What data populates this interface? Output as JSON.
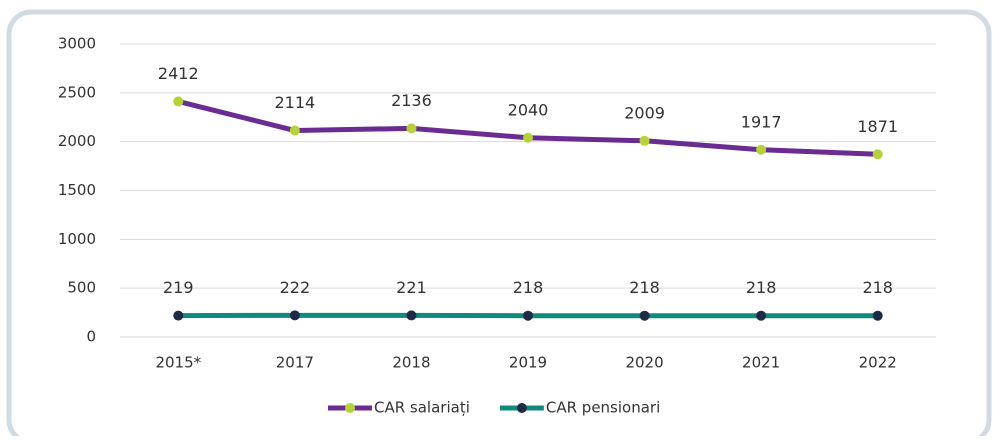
{
  "chart_data": {
    "type": "line",
    "categories": [
      "2015*",
      "2017",
      "2018",
      "2019",
      "2020",
      "2021",
      "2022"
    ],
    "series": [
      {
        "name": "CAR salariați",
        "color": "#6a2c91",
        "marker_color": "#b5d334",
        "values": [
          2412,
          2114,
          2136,
          2040,
          2009,
          1917,
          1871
        ]
      },
      {
        "name": "CAR pensionari",
        "color": "#0f8a7c",
        "marker_color": "#1f2a44",
        "values": [
          219,
          222,
          221,
          218,
          218,
          218,
          218
        ]
      }
    ],
    "ylim": [
      0,
      3000
    ],
    "yticks": [
      0,
      500,
      1000,
      1500,
      2000,
      2500,
      3000
    ],
    "grid": true,
    "legend": "bottom"
  }
}
